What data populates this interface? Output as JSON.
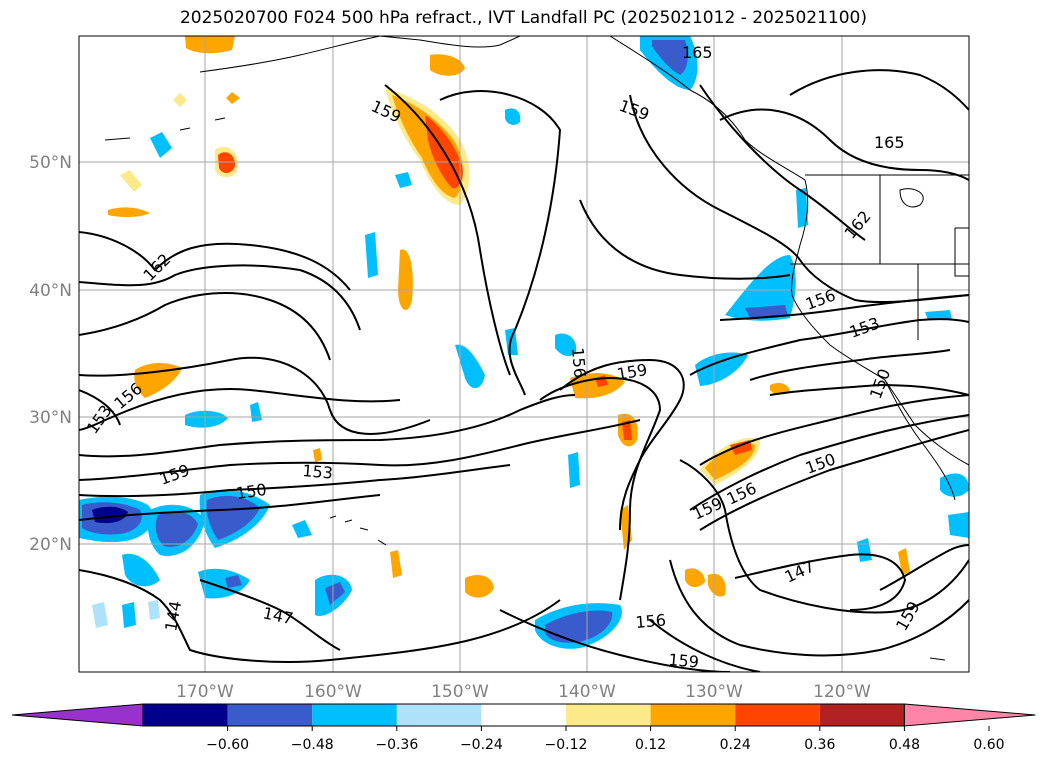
{
  "title": "2025020700 F024 500 hPa refract., IVT Landfall PC (2025021012 - 2025021100)",
  "map": {
    "lat_labels": [
      "50°N",
      "40°N",
      "30°N",
      "20°N"
    ],
    "lon_labels": [
      "170°W",
      "160°W",
      "150°W",
      "140°W",
      "130°W",
      "120°W"
    ],
    "contour_labels": [
      "165",
      "159",
      "165",
      "159",
      "162",
      "162",
      "156",
      "153",
      "150",
      "156",
      "159",
      "156",
      "153",
      "159",
      "153",
      "150",
      "150",
      "159",
      "156",
      "147",
      "144",
      "147",
      "156",
      "159",
      "159"
    ],
    "grid": true
  },
  "colorbar": {
    "ticks": [
      "−0.60",
      "−0.48",
      "−0.36",
      "−0.24",
      "−0.12",
      "0.12",
      "0.24",
      "0.36",
      "0.48",
      "0.60"
    ],
    "colors": [
      "#9932cc",
      "#00008b",
      "#3a5bcc",
      "#00bfff",
      "#aee2fa",
      "#ffffff",
      "#fce98a",
      "#ffa500",
      "#ff4500",
      "#b22222",
      "#ff85a8"
    ],
    "extend": "both"
  },
  "chart_data": {
    "type": "heatmap",
    "title": "2025020700 F024 500 hPa refract., IVT Landfall PC (2025021012 - 2025021100)",
    "xlabel": "",
    "ylabel": "",
    "x_ticks": [
      "170°W",
      "160°W",
      "150°W",
      "140°W",
      "130°W",
      "120°W"
    ],
    "y_ticks": [
      "50°N",
      "40°N",
      "30°N",
      "20°N"
    ],
    "color_levels": [
      -0.6,
      -0.48,
      -0.36,
      -0.24,
      -0.12,
      0.12,
      0.24,
      0.36,
      0.48,
      0.6
    ],
    "contour_levels": [
      144,
      147,
      150,
      153,
      156,
      159,
      162,
      165
    ],
    "grid": true
  }
}
